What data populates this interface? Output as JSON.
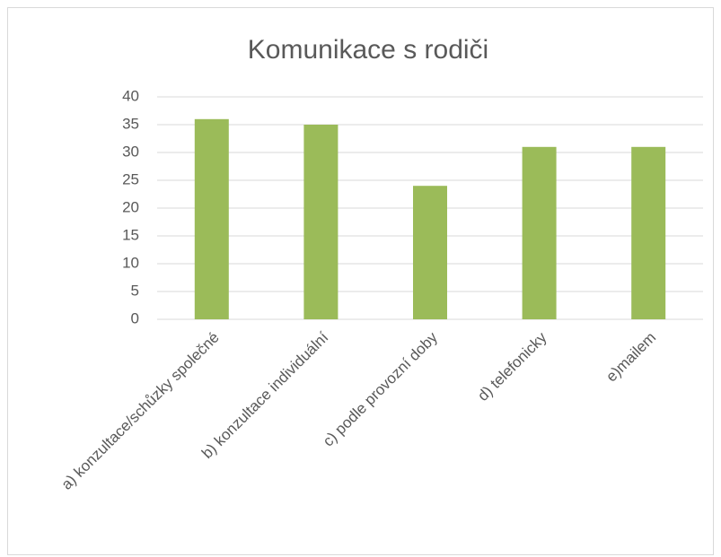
{
  "chart_data": {
    "type": "bar",
    "title": "Komunikace s rodiči",
    "categories": [
      "a) konzultace/schůzky společné",
      "b) konzultace individuální",
      "c) podle provozní doby",
      "d) telefonicky",
      "e)mailem"
    ],
    "values": [
      36,
      35,
      24,
      31,
      31
    ],
    "color": "#9bbb59",
    "ylim": [
      0,
      40
    ],
    "yticks": [
      0,
      5,
      10,
      15,
      20,
      25,
      30,
      35,
      40
    ],
    "grid": true
  }
}
